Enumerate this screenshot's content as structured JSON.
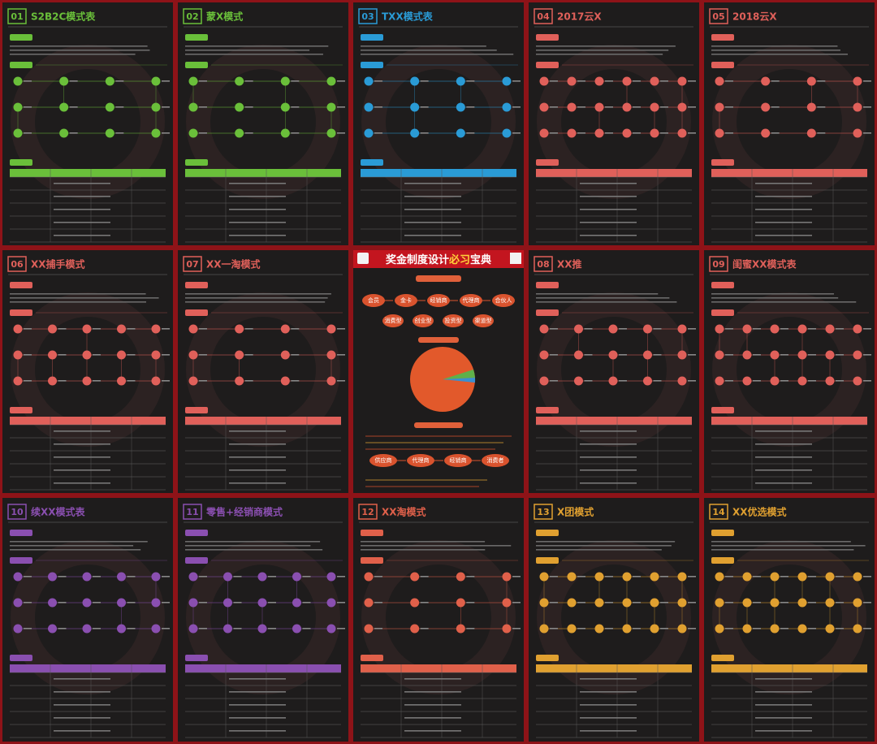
{
  "panels": [
    {
      "number": "01",
      "title": "S2B2C模式表",
      "accent": "#6abf3a"
    },
    {
      "number": "02",
      "title": "蒙X模式",
      "accent": "#6abf3a"
    },
    {
      "number": "03",
      "title": "TXX模式表",
      "accent": "#2a9bd6"
    },
    {
      "number": "04",
      "title": "2017云X",
      "accent": "#e0605a"
    },
    {
      "number": "05",
      "title": "2018云X",
      "accent": "#e0605a"
    },
    {
      "number": "06",
      "title": "XX捕手模式",
      "accent": "#e0605a"
    },
    {
      "number": "07",
      "title": "XX一淘模式",
      "accent": "#e0605a"
    },
    {
      "number": "08",
      "title": "XX推",
      "accent": "#e0605a"
    },
    {
      "number": "09",
      "title": "闺蜜XX模式表",
      "accent": "#e0605a"
    },
    {
      "number": "10",
      "title": "续XX模式表",
      "accent": "#8a4fb0"
    },
    {
      "number": "11",
      "title": "零售+经销商模式",
      "accent": "#8a4fb0"
    },
    {
      "number": "12",
      "title": "XX淘模式",
      "accent": "#e0604a"
    },
    {
      "number": "13",
      "title": "X团模式",
      "accent": "#e0a030"
    },
    {
      "number": "14",
      "title": "XX优选模式",
      "accent": "#e0a030"
    }
  ],
  "center": {
    "title_a": "奖金制度设计",
    "title_b": "必习",
    "title_c": "宝典",
    "top_nodes": [
      "会员",
      "金卡",
      "经销商",
      "代理商",
      "合伙人"
    ],
    "mid_nodes": [
      "消费型",
      "创业型",
      "投资型",
      "渠道型"
    ],
    "bottom_nodes": [
      "供应商",
      "代理商",
      "经销商",
      "消费者"
    ]
  }
}
